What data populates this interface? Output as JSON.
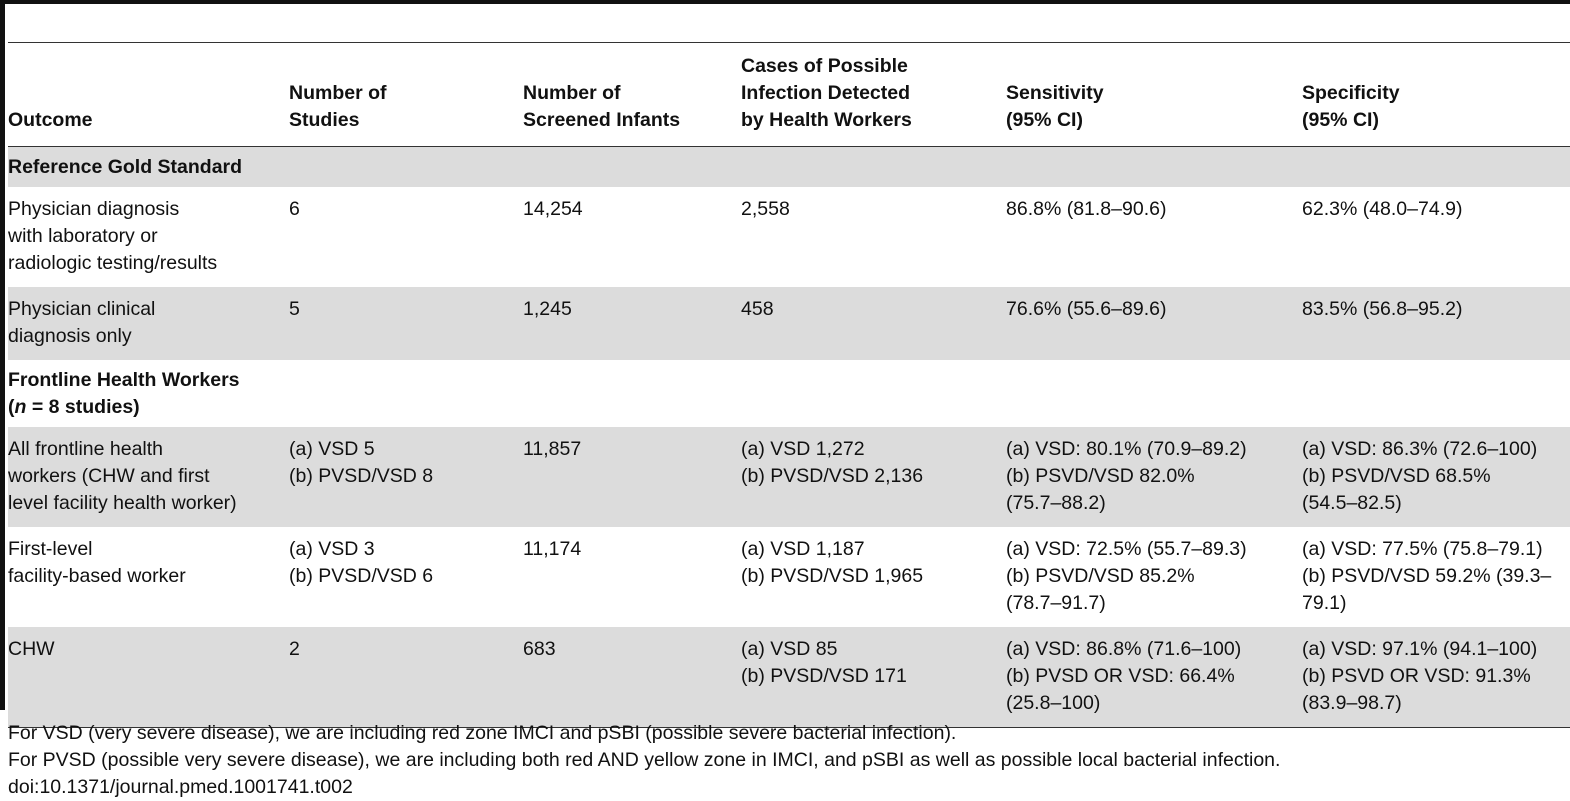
{
  "table": {
    "headers": {
      "outcome": [
        "Outcome"
      ],
      "studies": [
        "Number of",
        "Studies"
      ],
      "infants": [
        "Number of",
        "Screened Infants"
      ],
      "cases": [
        "Cases of Possible",
        "Infection Detected",
        "by Health Workers"
      ],
      "sensitivity": [
        "Sensitivity",
        "(95% CI)"
      ],
      "specificity": [
        "Specificity",
        "(95% CI)"
      ]
    },
    "section1": {
      "title": "Reference Gold Standard"
    },
    "row1": {
      "outcome": [
        "Physician diagnosis",
        "with laboratory or",
        "radiologic testing/results"
      ],
      "studies": [
        "6"
      ],
      "infants": [
        "14,254"
      ],
      "cases": [
        "2,558"
      ],
      "sensitivity": [
        "86.8% (81.8–90.6)"
      ],
      "specificity": [
        "62.3% (48.0–74.9)"
      ]
    },
    "row2": {
      "outcome": [
        "Physician clinical",
        "diagnosis only"
      ],
      "studies": [
        "5"
      ],
      "infants": [
        "1,245"
      ],
      "cases": [
        "458"
      ],
      "sensitivity": [
        "76.6% (55.6–89.6)"
      ],
      "specificity": [
        "83.5% (56.8–95.2)"
      ]
    },
    "section2": {
      "title_line1": "Frontline Health Workers",
      "title_open": "(",
      "title_n": "n",
      "title_rest": " = 8 studies)"
    },
    "row3": {
      "outcome": [
        "All frontline health",
        "workers (CHW and first",
        "level facility health worker)"
      ],
      "studies": [
        "(a) VSD 5",
        "(b) PVSD/VSD 8"
      ],
      "infants": [
        "11,857"
      ],
      "cases": [
        "(a) VSD 1,272",
        "(b) PVSD/VSD 2,136"
      ],
      "sensitivity": [
        "(a) VSD: 80.1% (70.9–89.2)",
        "(b) PSVD/VSD 82.0%",
        "(75.7–88.2)"
      ],
      "specificity": [
        "(a) VSD: 86.3% (72.6–100)",
        "(b) PSVD/VSD 68.5%",
        "(54.5–82.5)"
      ]
    },
    "row4": {
      "outcome": [
        "First-level",
        "facility-based worker"
      ],
      "studies": [
        "(a) VSD 3",
        "(b) PVSD/VSD 6"
      ],
      "infants": [
        "11,174"
      ],
      "cases": [
        "(a) VSD 1,187",
        "(b) PVSD/VSD 1,965"
      ],
      "sensitivity": [
        "(a) VSD: 72.5% (55.7–89.3)",
        "(b) PSVD/VSD 85.2%",
        "(78.7–91.7)"
      ],
      "specificity": [
        "(a) VSD: 77.5% (75.8–79.1)",
        "(b) PSVD/VSD 59.2% (39.3–",
        "79.1)"
      ]
    },
    "row5": {
      "outcome": [
        "CHW"
      ],
      "studies": [
        "2"
      ],
      "infants": [
        "683"
      ],
      "cases": [
        "(a) VSD 85",
        "(b) PVSD/VSD 171"
      ],
      "sensitivity": [
        "(a) VSD: 86.8% (71.6–100)",
        "(b) PVSD OR VSD: 66.4%",
        "(25.8–100)"
      ],
      "specificity": [
        "(a) VSD: 97.1% (94.1–100)",
        "(b) PSVD OR VSD: 91.3%",
        "(83.9–98.7)"
      ]
    }
  },
  "footnotes": {
    "vsd": "For VSD (very severe disease), we are including red zone IMCI and pSBI (possible severe bacterial infection).",
    "pvsd": "For PVSD (possible very severe disease), we are including both red AND yellow zone in IMCI, and pSBI as well as possible local bacterial infection.",
    "doi": "doi:10.1371/journal.pmed.1001741.t002"
  }
}
